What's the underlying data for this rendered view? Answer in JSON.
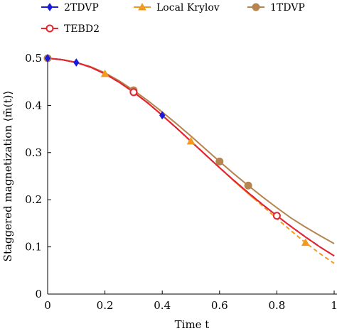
{
  "chart_data": {
    "type": "line",
    "xlabel": "Time t",
    "ylabel": "Staggered magnetization ⟨m̃(t)⟩",
    "xlim": [
      0,
      1
    ],
    "ylim": [
      0,
      0.5
    ],
    "xticks": [
      "0",
      "0.2",
      "0.4",
      "0.6",
      "0.8",
      "1"
    ],
    "yticks": [
      "0",
      "0.1",
      "0.2",
      "0.3",
      "0.4",
      "0.5"
    ],
    "legend_position": "top, outside plot",
    "series": [
      {
        "name": "2TDVP",
        "color": "#1a1adb",
        "marker": "diamond",
        "line": "solid",
        "x": [
          0,
          0.05,
          0.1,
          0.15,
          0.2,
          0.25,
          0.3,
          0.35,
          0.4,
          0.45,
          0.5,
          0.55,
          0.6,
          0.65,
          0.7,
          0.75,
          0.8,
          0.85,
          0.9,
          0.95,
          1.0
        ],
        "y": [
          0.5,
          0.497,
          0.491,
          0.481,
          0.467,
          0.449,
          0.428,
          0.405,
          0.379,
          0.352,
          0.324,
          0.296,
          0.268,
          0.241,
          0.215,
          0.19,
          0.166,
          0.143,
          0.121,
          0.1,
          0.081
        ],
        "marker_x": [
          0,
          0.1,
          0.4
        ]
      },
      {
        "name": "Local Krylov",
        "color": "#f39a1e",
        "marker": "triangle",
        "line": "solid, dashed after t≈0.72",
        "x": [
          0,
          0.05,
          0.1,
          0.15,
          0.2,
          0.25,
          0.3,
          0.35,
          0.4,
          0.45,
          0.5,
          0.55,
          0.6,
          0.65,
          0.7,
          0.75,
          0.8,
          0.85,
          0.9,
          0.95,
          1.0
        ],
        "y": [
          0.5,
          0.497,
          0.491,
          0.481,
          0.467,
          0.449,
          0.428,
          0.405,
          0.379,
          0.352,
          0.324,
          0.296,
          0.268,
          0.24,
          0.213,
          0.187,
          0.16,
          0.134,
          0.109,
          0.086,
          0.065
        ],
        "marker_x": [
          0.2,
          0.5,
          0.9
        ],
        "dash_from_x": 0.72
      },
      {
        "name": "1TDVP",
        "color": "#b5844f",
        "marker": "circle-filled",
        "line": "solid",
        "x": [
          0,
          0.05,
          0.1,
          0.15,
          0.2,
          0.25,
          0.3,
          0.35,
          0.4,
          0.45,
          0.5,
          0.55,
          0.6,
          0.65,
          0.7,
          0.75,
          0.8,
          0.85,
          0.9,
          0.95,
          1.0
        ],
        "y": [
          0.5,
          0.497,
          0.491,
          0.482,
          0.469,
          0.452,
          0.432,
          0.41,
          0.386,
          0.361,
          0.335,
          0.308,
          0.281,
          0.255,
          0.23,
          0.206,
          0.183,
          0.161,
          0.142,
          0.124,
          0.107
        ],
        "marker_x": [
          0,
          0.3,
          0.6,
          0.7
        ]
      },
      {
        "name": "TEBD2",
        "color": "#e8232a",
        "marker": "circle-open",
        "line": "solid",
        "x": [
          0,
          0.05,
          0.1,
          0.15,
          0.2,
          0.25,
          0.3,
          0.35,
          0.4,
          0.45,
          0.5,
          0.55,
          0.6,
          0.65,
          0.7,
          0.75,
          0.8,
          0.85,
          0.9,
          0.95,
          1.0
        ],
        "y": [
          0.5,
          0.497,
          0.491,
          0.481,
          0.467,
          0.449,
          0.428,
          0.405,
          0.379,
          0.352,
          0.324,
          0.296,
          0.268,
          0.241,
          0.215,
          0.19,
          0.166,
          0.143,
          0.121,
          0.1,
          0.081
        ],
        "marker_x": [
          0.3,
          0.8
        ]
      }
    ]
  }
}
